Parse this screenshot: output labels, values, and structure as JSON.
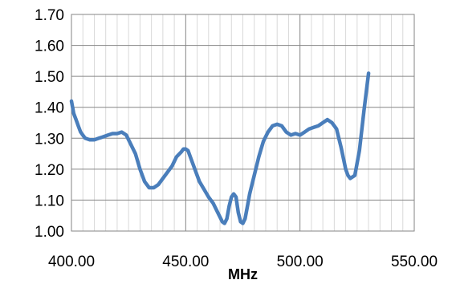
{
  "chart_data": {
    "type": "line",
    "title": "",
    "xlabel": "MHz",
    "ylabel": "",
    "xlim": [
      400,
      550
    ],
    "ylim": [
      1.0,
      1.7
    ],
    "x_ticks": [
      400,
      450,
      500,
      550
    ],
    "x_tick_labels": [
      "400.00",
      "450.00",
      "500.00",
      "550.00"
    ],
    "y_ticks": [
      1.0,
      1.1,
      1.2,
      1.3,
      1.4,
      1.5,
      1.6,
      1.7
    ],
    "y_tick_labels": [
      "1.00",
      "1.10",
      "1.20",
      "1.30",
      "1.40",
      "1.50",
      "1.60",
      "1.70"
    ],
    "x_minor_step": 5,
    "grid": true,
    "legend": "none",
    "colors": {
      "series": "#4a7ebb",
      "major_grid": "#868686",
      "minor_grid": "#d9d9d9"
    },
    "series": [
      {
        "x": [
          400,
          401,
          402,
          403,
          404,
          405,
          406,
          408,
          410,
          412,
          414,
          416,
          418,
          420,
          422,
          424,
          426,
          428,
          430,
          432,
          434,
          436,
          438,
          440,
          442,
          444,
          446,
          448,
          449,
          450,
          451,
          452,
          454,
          456,
          458,
          460,
          462,
          464,
          466,
          467,
          468,
          469,
          470,
          471,
          472,
          473,
          474,
          475,
          476,
          477,
          478,
          480,
          482,
          484,
          486,
          488,
          490,
          492,
          494,
          496,
          498,
          500,
          502,
          504,
          506,
          508,
          510,
          512,
          514,
          516,
          518,
          520,
          521,
          522,
          524,
          526,
          528,
          530
        ],
        "y": [
          1.42,
          1.38,
          1.36,
          1.34,
          1.32,
          1.31,
          1.3,
          1.295,
          1.295,
          1.3,
          1.305,
          1.31,
          1.315,
          1.315,
          1.32,
          1.31,
          1.28,
          1.25,
          1.2,
          1.16,
          1.14,
          1.14,
          1.15,
          1.17,
          1.19,
          1.21,
          1.24,
          1.255,
          1.265,
          1.265,
          1.26,
          1.24,
          1.2,
          1.16,
          1.135,
          1.11,
          1.09,
          1.06,
          1.03,
          1.025,
          1.04,
          1.08,
          1.11,
          1.12,
          1.11,
          1.06,
          1.03,
          1.025,
          1.04,
          1.08,
          1.12,
          1.18,
          1.24,
          1.29,
          1.32,
          1.34,
          1.345,
          1.34,
          1.32,
          1.31,
          1.315,
          1.31,
          1.32,
          1.33,
          1.335,
          1.34,
          1.35,
          1.36,
          1.35,
          1.33,
          1.27,
          1.2,
          1.18,
          1.17,
          1.18,
          1.26,
          1.39,
          1.51
        ]
      }
    ]
  }
}
